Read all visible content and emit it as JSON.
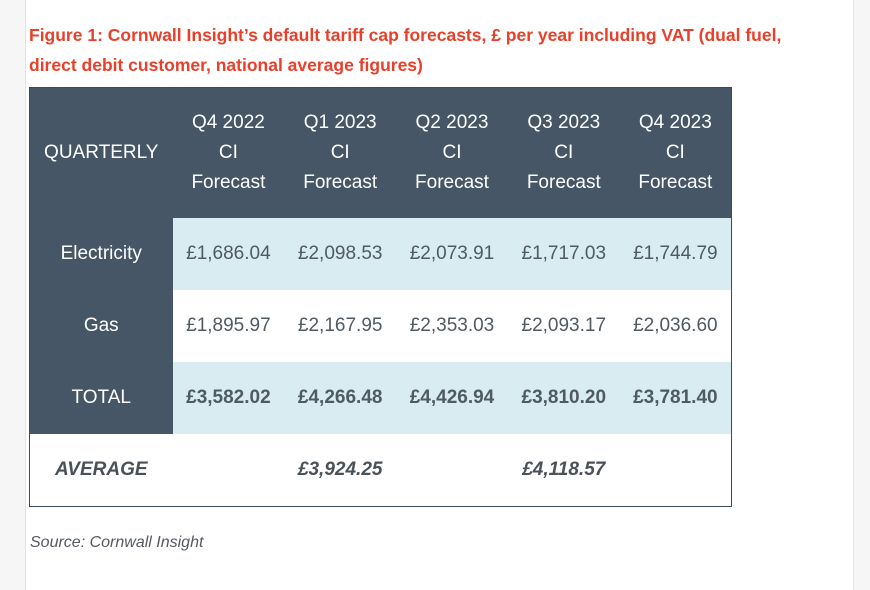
{
  "figure": {
    "caption": "Figure 1: Cornwall Insight’s default tariff cap forecasts, £ per year including VAT (dual fuel, direct debit customer, national average figures)",
    "source": "Source: Cornwall Insight"
  },
  "table": {
    "corner_label": "QUARTERLY",
    "columns": [
      {
        "line1": "Q4 2022",
        "line2": "CI",
        "line3": "Forecast"
      },
      {
        "line1": "Q1 2023",
        "line2": "CI",
        "line3": "Forecast"
      },
      {
        "line1": "Q2 2023",
        "line2": "CI",
        "line3": "Forecast"
      },
      {
        "line1": "Q3 2023",
        "line2": "CI",
        "line3": "Forecast"
      },
      {
        "line1": "Q4 2023",
        "line2": "CI",
        "line3": "Forecast"
      }
    ],
    "rows": [
      {
        "label": "Electricity",
        "values": [
          "£1,686.04",
          "£2,098.53",
          "£2,073.91",
          "£1,717.03",
          "£1,744.79"
        ]
      },
      {
        "label": "Gas",
        "values": [
          "£1,895.97",
          "£2,167.95",
          "£2,353.03",
          "£2,093.17",
          "£2,036.60"
        ]
      },
      {
        "label": "TOTAL",
        "values": [
          "£3,582.02",
          "£4,266.48",
          "£4,426.94",
          "£3,810.20",
          "£3,781.40"
        ]
      }
    ],
    "average": {
      "label": "AVERAGE",
      "values": [
        "",
        "£3,924.25",
        "",
        "£4,118.57",
        ""
      ]
    }
  },
  "colors": {
    "caption": "#e8402a",
    "header_bg": "#465666",
    "highlight_row_bg": "#d8ecf2",
    "body_text": "#505a63"
  }
}
